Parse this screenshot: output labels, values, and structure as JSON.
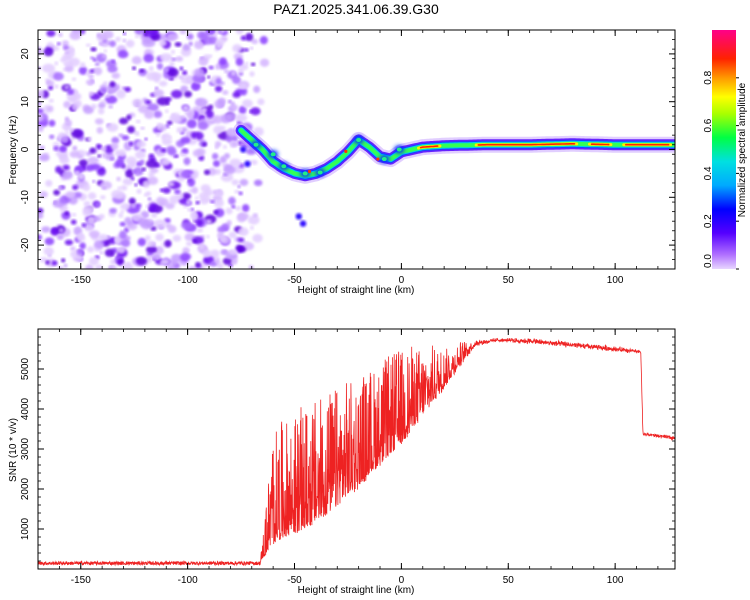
{
  "title": "PAZ1.2025.341.06.39.G30",
  "chart_data": [
    {
      "type": "heatmap",
      "title": "PAZ1.2025.341.06.39.G30",
      "xlabel": "Height of straight line (km)",
      "ylabel": "Frequency (Hz)",
      "xlim": [
        -170,
        128
      ],
      "ylim": [
        -25,
        25
      ],
      "xticks": [
        -150,
        -100,
        -50,
        0,
        50,
        100
      ],
      "yticks": [
        -20,
        -10,
        0,
        10,
        20
      ],
      "noise_region_x": [
        -170,
        -72
      ],
      "ridge": {
        "x": [
          -75,
          -70,
          -65,
          -60,
          -55,
          -50,
          -45,
          -40,
          -35,
          -30,
          -25,
          -20,
          -15,
          -10,
          -5,
          0,
          5,
          10,
          20,
          30,
          40,
          60,
          80,
          100,
          128
        ],
        "y": [
          4,
          2,
          0,
          -2.5,
          -4,
          -5,
          -5.5,
          -5,
          -4,
          -2.5,
          -0.5,
          2,
          0.5,
          -1.5,
          -2,
          -0.5,
          0,
          0.5,
          0.8,
          0.9,
          1,
          1,
          1.2,
          1,
          1
        ]
      },
      "colorbar": {
        "label": "Normalized spectral amplitude",
        "ticks": [
          "0.0",
          "0.2",
          "0.4",
          "0.6",
          "0.8"
        ],
        "tick_values": [
          0,
          0.2,
          0.4,
          0.6,
          0.8
        ],
        "range": [
          0,
          1
        ]
      }
    },
    {
      "type": "line",
      "xlabel": "Height of straight line (km)",
      "ylabel": "SNR (10 * v/v)",
      "xlim": [
        -170,
        128
      ],
      "ylim": [
        0,
        6000
      ],
      "xticks": [
        -150,
        -100,
        -50,
        0,
        50,
        100
      ],
      "yticks": [
        1000,
        2000,
        3000,
        4000,
        5000
      ],
      "color": "#ee2222",
      "envelope": {
        "x": [
          -170,
          -66,
          -60,
          -40,
          -20,
          0,
          20,
          35,
          45,
          60,
          80,
          100,
          112,
          113,
          128
        ],
        "base": [
          100,
          100,
          600,
          1100,
          2000,
          3100,
          4500,
          5600,
          5700,
          5650,
          5550,
          5450,
          5400,
          3350,
          3250
        ],
        "spike": [
          150,
          150,
          3450,
          4200,
          4800,
          5500,
          5500,
          5700,
          5750,
          5750,
          5650,
          5550,
          5450,
          3400,
          3300
        ]
      }
    }
  ]
}
